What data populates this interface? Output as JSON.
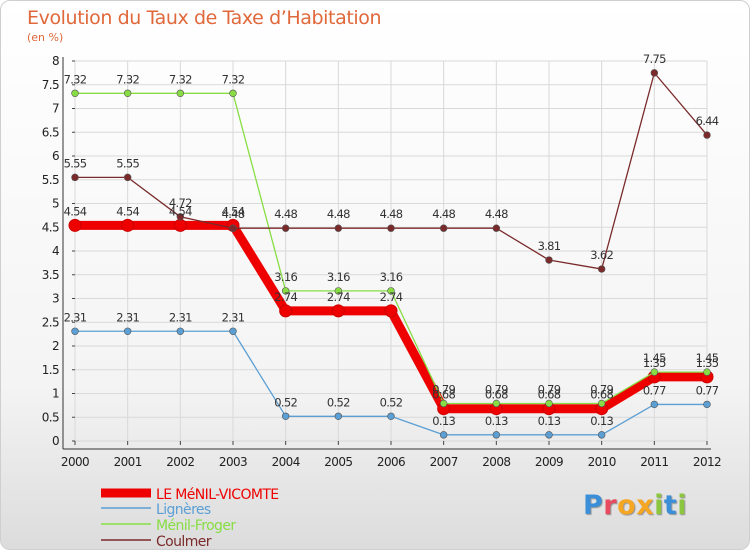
{
  "title": "Evolution du Taux de Taxe d’Habitation",
  "unit_label": "(en %)",
  "logo_text": "Proxiti",
  "colors": {
    "title": "#e0683a",
    "grid": "#d9d9d9",
    "axis": "#222222"
  },
  "chart_data": {
    "type": "line",
    "title": "Evolution du Taux de Taxe d’Habitation",
    "ylabel": "(en %)",
    "xlabel": "",
    "ylim": [
      0,
      8
    ],
    "y_ticks": [
      "0",
      "0.5",
      "1",
      "1.5",
      "2",
      "2.5",
      "3",
      "3.5",
      "4",
      "4.5",
      "5",
      "5.5",
      "6",
      "6.5",
      "7",
      "7.5",
      "8"
    ],
    "categories": [
      "2000",
      "2001",
      "2002",
      "2003",
      "2004",
      "2005",
      "2006",
      "2007",
      "2008",
      "2009",
      "2010",
      "2011",
      "2012"
    ],
    "grid": true,
    "legend_position": "bottom-left",
    "series": [
      {
        "name": "LE MéNIL-VICOMTE",
        "color": "#ee0000",
        "values": [
          4.54,
          4.54,
          4.54,
          4.54,
          2.74,
          2.74,
          2.74,
          0.68,
          0.68,
          0.68,
          0.68,
          1.35,
          1.35
        ],
        "labels": [
          "4.54",
          "4.54",
          "4.54",
          "4.54",
          "2.74",
          "2.74",
          "2.74",
          "0.68",
          "0.68",
          "0.68",
          "0.68",
          "1.35",
          "1.35"
        ]
      },
      {
        "name": "Lignères",
        "color": "#5b9fd4",
        "values": [
          2.31,
          2.31,
          2.31,
          2.31,
          0.52,
          0.52,
          0.52,
          0.13,
          0.13,
          0.13,
          0.13,
          0.77,
          0.77
        ],
        "labels": [
          "2.31",
          "2.31",
          "2.31",
          "2.31",
          "0.52",
          "0.52",
          "0.52",
          "0.13",
          "0.13",
          "0.13",
          "0.13",
          "0.77",
          "0.77"
        ]
      },
      {
        "name": "Ménil-Froger",
        "color": "#88dd44",
        "values": [
          7.32,
          7.32,
          7.32,
          7.32,
          3.16,
          3.16,
          3.16,
          0.79,
          0.79,
          0.79,
          0.79,
          1.45,
          1.45
        ],
        "labels": [
          "7.32",
          "7.32",
          "7.32",
          "7.32",
          "3.16",
          "3.16",
          "3.16",
          "0.79",
          "0.79",
          "0.79",
          "0.79",
          "1.45",
          "1.45"
        ]
      },
      {
        "name": "Coulmer",
        "color": "#7a2a2a",
        "values": [
          5.55,
          5.55,
          4.72,
          4.48,
          4.48,
          4.48,
          4.48,
          4.48,
          4.48,
          3.81,
          3.62,
          7.75,
          6.44
        ],
        "labels": [
          "5.55",
          "5.55",
          "4.72",
          "4.48",
          "4.48",
          "4.48",
          "4.48",
          "4.48",
          "4.48",
          "3.81",
          "3.62",
          "7.75",
          "6.44"
        ]
      }
    ]
  }
}
